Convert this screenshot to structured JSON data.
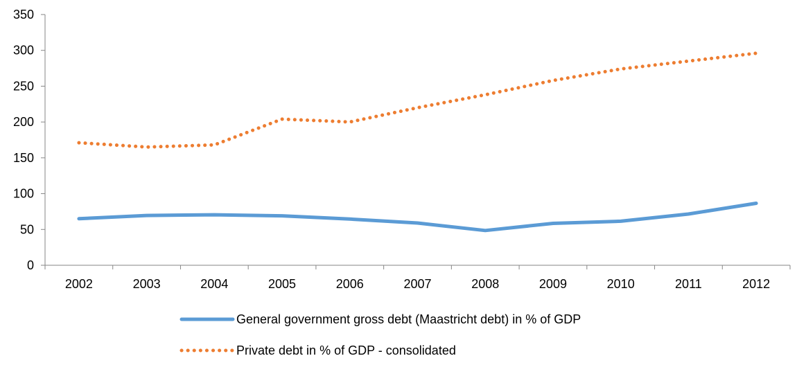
{
  "chart_data": {
    "type": "line",
    "categories": [
      "2002",
      "2003",
      "2004",
      "2005",
      "2006",
      "2007",
      "2008",
      "2009",
      "2010",
      "2011",
      "2012"
    ],
    "ylim": [
      0,
      350
    ],
    "yticks": [
      "0",
      "50",
      "100",
      "150",
      "200",
      "250",
      "300",
      "350"
    ],
    "grid": false,
    "legend_position": "bottom",
    "series": [
      {
        "name": "General government gross debt (Maastricht debt) in % of GDP",
        "style": "solid",
        "color": "#5B9BD5",
        "values": [
          65.0,
          69.5,
          70.5,
          69.0,
          64.5,
          59.0,
          48.5,
          58.5,
          61.5,
          71.5,
          86.5
        ]
      },
      {
        "name": "Private debt in % of GDP - consolidated",
        "style": "dotted",
        "color": "#ED7D31",
        "values": [
          171,
          165,
          168,
          204,
          200,
          220,
          238,
          258,
          274,
          285,
          296
        ]
      }
    ]
  }
}
